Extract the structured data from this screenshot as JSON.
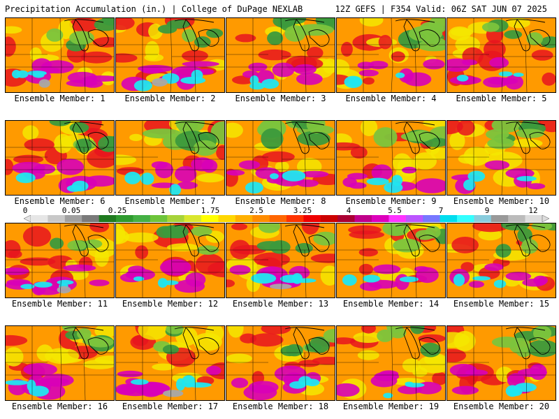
{
  "header": {
    "left": "Precipitation Accumulation (in.) | College of DuPage NEXLAB",
    "right": "12Z GEFS | F354 Valid: 06Z SAT JUN 07 2025"
  },
  "member_label_prefix": "Ensemble Member:",
  "members": [
    {
      "number": "1"
    },
    {
      "number": "2"
    },
    {
      "number": "3"
    },
    {
      "number": "4"
    },
    {
      "number": "5"
    },
    {
      "number": "6"
    },
    {
      "number": "7"
    },
    {
      "number": "8"
    },
    {
      "number": "9"
    },
    {
      "number": "10"
    },
    {
      "number": "11"
    },
    {
      "number": "12"
    },
    {
      "number": "13"
    },
    {
      "number": "14"
    },
    {
      "number": "15"
    },
    {
      "number": "16"
    },
    {
      "number": "17"
    },
    {
      "number": "18"
    },
    {
      "number": "19"
    },
    {
      "number": "20"
    }
  ],
  "colorbar": {
    "ticks": [
      "0",
      "0.05",
      "0.25",
      "1",
      "1.75",
      "2.5",
      "3.25",
      "4",
      "5.5",
      "7",
      "9",
      "12"
    ],
    "colors": [
      "#e6e6e6",
      "#c8c8c8",
      "#a0a0a0",
      "#7a7a7a",
      "#1f7a1f",
      "#2e9a2e",
      "#44b044",
      "#6dc43a",
      "#a6d33a",
      "#d9e62e",
      "#ffff00",
      "#ffd700",
      "#ffb000",
      "#ff8c00",
      "#ff6600",
      "#ff3300",
      "#ee0000",
      "#cc0000",
      "#aa0033",
      "#c0008a",
      "#dd00bb",
      "#ff33ff",
      "#bb55ff",
      "#7777ff",
      "#00ddee",
      "#33ffff",
      "#88ccdd",
      "#999999",
      "#bbbbbb",
      "#dddddd"
    ]
  },
  "map_palette": {
    "dry_green": "#3c9a3c",
    "light_green": "#7cc43c",
    "yellow": "#f5e800",
    "orange": "#ff9a00",
    "red": "#e8141e",
    "magenta": "#d800b8",
    "cyan": "#20e6f0",
    "gray": "#a8a8a8"
  }
}
